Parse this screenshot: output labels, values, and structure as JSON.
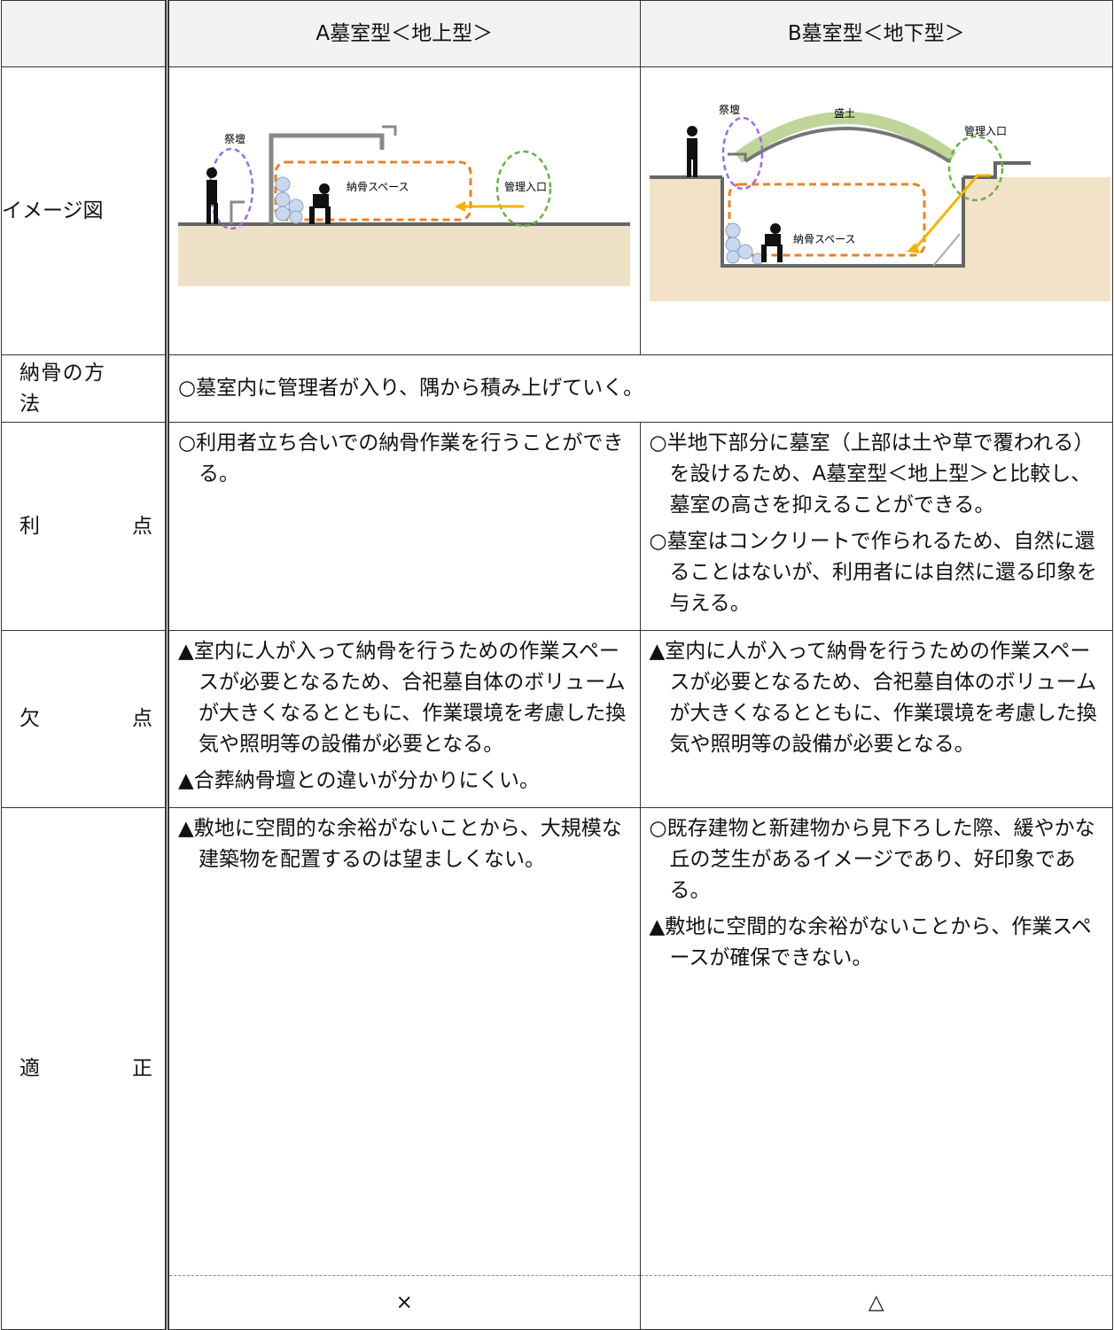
{
  "table": {
    "columns": [
      "A墓室型＜地上型＞",
      "B墓室型＜地下型＞"
    ],
    "image_row": {
      "label": "イメージ図",
      "a": {
        "labels": [
          "祭壇",
          "納骨スペース",
          "管理入口"
        ]
      },
      "b": {
        "labels": [
          "祭壇",
          "盛土",
          "管理入口",
          "納骨スペース"
        ]
      }
    },
    "method_row": {
      "label": "納骨の方法",
      "text": "○墓室内に管理者が入り、隅から積み上げていく。"
    },
    "rows": [
      {
        "label": "利点",
        "a": [
          "○利用者立ち合いでの納骨作業を行うことができる。"
        ],
        "b": [
          "○半地下部分に墓室（上部は土や草で覆われる）を設けるため、A墓室型＜地上型＞と比較し、墓室の高さを抑えることができる。",
          "○墓室はコンクリートで作られるため、自然に還ることはないが、利用者には自然に還る印象を与える。"
        ]
      },
      {
        "label": "欠点",
        "a": [
          "▲室内に人が入って納骨を行うための作業スペースが必要となるため、合祀墓自体のボリュームが大きくなるとともに、作業環境を考慮した換気や照明等の設備が必要となる。",
          "▲合葬納骨壇との違いが分かりにくい。"
        ],
        "b": [
          "▲室内に人が入って納骨を行うための作業スペースが必要となるため、合祀墓自体のボリュームが大きくなるとともに、作業環境を考慮した換気や照明等の設備が必要となる。"
        ]
      },
      {
        "label": "適正",
        "a": [
          "▲敷地に空間的な余裕がないことから、大規模な建築物を配置するのは望ましくない。"
        ],
        "b": [
          "○既存建物と新建物から見下ろした際、緩やかな丘の芝生があるイメージであり、好印象である。",
          "▲敷地に空間的な余裕がないことから、作業スペースが確保できない。"
        ]
      }
    ],
    "verdict": {
      "a": "×",
      "b": "△"
    }
  }
}
